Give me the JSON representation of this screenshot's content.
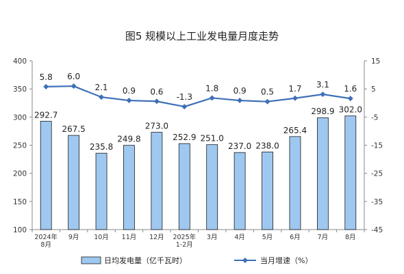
{
  "chart_data": {
    "type": "bar+line",
    "title": "图5  规模以上工业发电量月度走势",
    "categories": [
      [
        "2024年",
        "8月"
      ],
      [
        "9月"
      ],
      [
        "10月"
      ],
      [
        "11月"
      ],
      [
        "12月"
      ],
      [
        "2025年",
        "1-2月"
      ],
      [
        "3月"
      ],
      [
        "4月"
      ],
      [
        "5月"
      ],
      [
        "6月"
      ],
      [
        "7月"
      ],
      [
        "8月"
      ]
    ],
    "series": [
      {
        "name": "日均发电量（亿千瓦时）",
        "type": "bar",
        "axis": "left",
        "color": "#9ec8f0",
        "edge_color": "#1a1a1a",
        "values": [
          292.7,
          267.5,
          235.8,
          249.8,
          273.0,
          252.9,
          251.0,
          237.0,
          238.0,
          265.4,
          298.9,
          302.0
        ],
        "labels": [
          "292.7",
          "267.5",
          "235.8",
          "249.8",
          "273.0",
          "252.9",
          "251.0",
          "237.0",
          "238.0",
          "265.4",
          "298.9",
          "302.0"
        ]
      },
      {
        "name": "当月增速（%）",
        "type": "line",
        "axis": "right",
        "color": "#3d6fb6",
        "values": [
          5.8,
          6.0,
          2.1,
          0.9,
          0.6,
          -1.3,
          1.8,
          0.9,
          0.5,
          1.7,
          3.1,
          1.6
        ],
        "labels": [
          "5.8",
          "6.0",
          "2.1",
          "0.9",
          "0.6",
          "-1.3",
          "1.8",
          "0.9",
          "0.5",
          "1.7",
          "3.1",
          "1.6"
        ]
      }
    ],
    "y_left": {
      "min": 100,
      "max": 400,
      "ticks": [
        "100",
        "150",
        "200",
        "250",
        "300",
        "350",
        "400"
      ]
    },
    "y_right": {
      "min": -45,
      "max": 15,
      "ticks": [
        "-45",
        "-35",
        "-25",
        "-15",
        "-5",
        "5",
        "15"
      ]
    },
    "grid": false,
    "legend_position": "bottom"
  }
}
